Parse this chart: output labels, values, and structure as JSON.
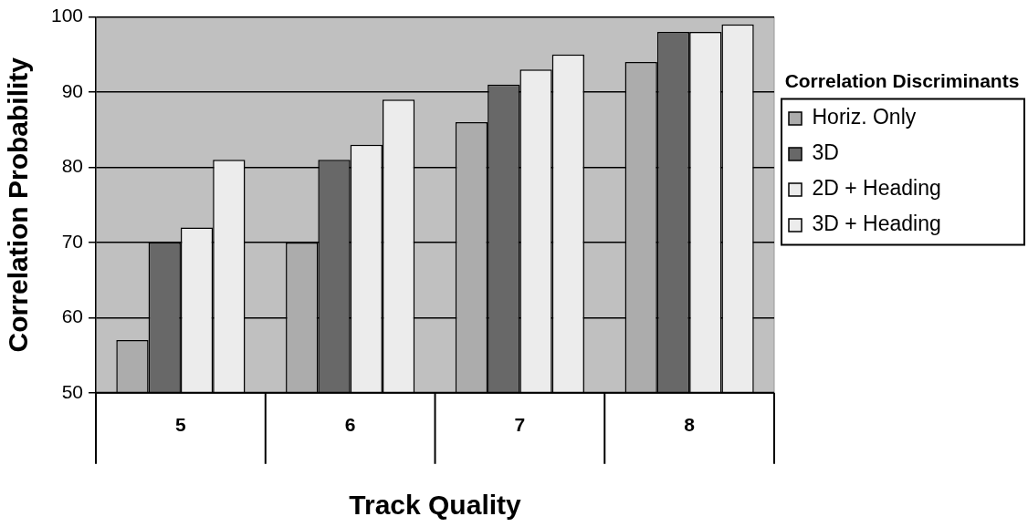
{
  "chart_data": {
    "type": "bar",
    "xlabel": "Track Quality",
    "ylabel": "Correlation Probability",
    "legend_title": "Correlation Discriminants",
    "categories": [
      "5",
      "6",
      "7",
      "8"
    ],
    "series": [
      {
        "name": "Horiz. Only",
        "color": "#acacac",
        "values": [
          57,
          70,
          86,
          94
        ]
      },
      {
        "name": "3D",
        "color": "#686868",
        "values": [
          70,
          81,
          91,
          98
        ]
      },
      {
        "name": "2D + Heading",
        "color": "#ececec",
        "values": [
          72,
          83,
          93,
          98
        ]
      },
      {
        "name": "3D + Heading",
        "color": "#ececec",
        "values": [
          81,
          89,
          95,
          99
        ]
      }
    ],
    "ylim": [
      50,
      100
    ],
    "yticks": [
      50,
      60,
      70,
      80,
      90,
      100
    ],
    "grid": "y",
    "legend": "right"
  }
}
